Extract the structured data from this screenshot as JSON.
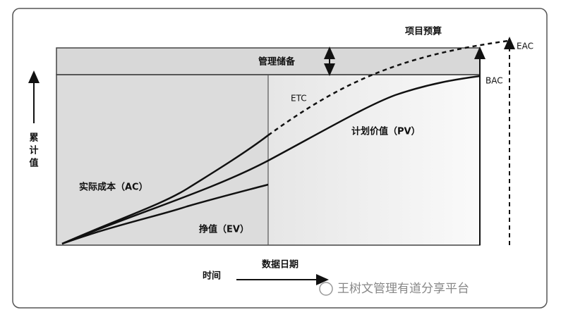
{
  "diagram": {
    "labels": {
      "project_budget": "项目预算",
      "management_reserve": "管理储备",
      "eac": "EAC",
      "bac": "BAC",
      "etc": "ETC",
      "planned_value": "计划价值（PV）",
      "actual_cost": "实际成本（AC）",
      "earned_value": "挣值（EV）",
      "y_axis": [
        "累",
        "计",
        "值"
      ],
      "time": "时间",
      "data_date": "数据日期"
    },
    "watermark": "王树文管理有道分享平台"
  }
}
